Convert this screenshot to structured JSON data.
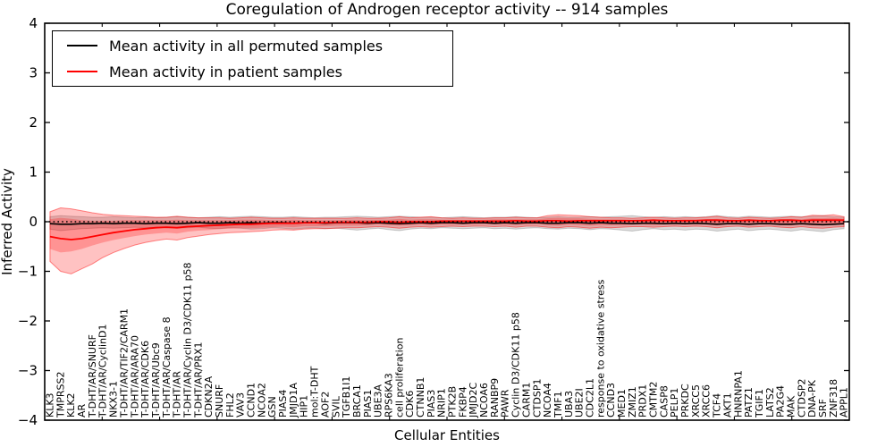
{
  "title": "Coregulation of Androgen receptor activity -- 914 samples",
  "axes": {
    "xlabel": "Cellular Entities",
    "ylabel": "Inferred Activity"
  },
  "legend": {
    "position": "upper left",
    "entries": [
      {
        "label": "Mean activity in all permuted samples",
        "color": "#000000"
      },
      {
        "label": "Mean activity in patient samples",
        "color": "#ff0000"
      }
    ]
  },
  "colors": {
    "permuted_line": "#000000",
    "patient_line": "#ff0000",
    "permuted_fill": "rgba(0,0,0,0.14)",
    "patient_fill": "rgba(255,0,0,0.24)",
    "zero_line": "#000000",
    "background": "#ffffff"
  },
  "chart_data": {
    "type": "line",
    "title": "Coregulation of Androgen receptor activity -- 914 samples",
    "xlabel": "Cellular Entities",
    "ylabel": "Inferred Activity",
    "ylim": [
      -4,
      4
    ],
    "yticks": [
      4,
      3,
      2,
      1,
      0,
      -1,
      -2,
      -3,
      -4
    ],
    "grid": false,
    "legend_position": "upper left",
    "zero_line": {
      "y": 0,
      "style": "dotted",
      "color": "#000000"
    },
    "categories": [
      "KLK3",
      "TMPRSS2",
      "KLK2",
      "AR",
      "T-DHT/AR/SNURF",
      "T-DHT/AR/CyclinD1",
      "NKX3-1",
      "T-DHT/AR/TIF2/CARM1",
      "T-DHT/AR/ARA70",
      "T-DHT/AR/CDK6",
      "T-DHT/AR/Ubc9",
      "T-DHT/AR/Caspase 8",
      "T-DHT/AR",
      "T-DHT/AR/Cyclin D3/CDK11 p58",
      "T-DHT/AR/PRX1",
      "CDKN2A",
      "SNURF",
      "FHL2",
      "VAV3",
      "CCND1",
      "NCOA2",
      "GSN",
      "PIAS4",
      "JMJD1A",
      "HIP1",
      "mol:T-DHT",
      "AOF2",
      "SVIL",
      "TGFB1I1",
      "BRCA1",
      "PIAS1",
      "UBE3A",
      "RPS6KA3",
      "cell proliferation",
      "CDK6",
      "CTNNB1",
      "PIAS3",
      "NRIP1",
      "PTK2B",
      "FKBP4",
      "JMJD2C",
      "NCOA6",
      "RANBP9",
      "PAWR",
      "Cyclin D3/CDK11 p58",
      "CARM1",
      "CTDSP1",
      "NCOA4",
      "TMF1",
      "UBA3",
      "UBE2I",
      "CDC2L1",
      "response to oxidative stress",
      "CCND3",
      "MED1",
      "ZMIZ1",
      "PRDX1",
      "CMTM2",
      "CASP8",
      "PELP1",
      "PRKDC",
      "XRCC5",
      "XRCC6",
      "TCF4",
      "AKT1",
      "HNRNPA1",
      "PATZ1",
      "TGIF1",
      "LATS2",
      "PA2G4",
      "MAK",
      "CTDSP2",
      "DNA-PK",
      "SRF",
      "ZNF318",
      "APPL1"
    ],
    "series": [
      {
        "name": "Mean activity in all permuted samples",
        "color": "#000000",
        "values": [
          -0.04,
          -0.05,
          -0.05,
          -0.04,
          -0.04,
          -0.03,
          -0.04,
          -0.03,
          -0.03,
          -0.04,
          -0.03,
          -0.03,
          -0.04,
          -0.03,
          -0.02,
          -0.03,
          -0.03,
          -0.02,
          -0.03,
          -0.02,
          -0.03,
          -0.02,
          -0.02,
          -0.03,
          -0.02,
          -0.02,
          -0.03,
          -0.02,
          -0.02,
          -0.02,
          -0.03,
          -0.02,
          -0.03,
          -0.04,
          -0.03,
          -0.02,
          -0.03,
          -0.02,
          -0.02,
          -0.03,
          -0.02,
          -0.02,
          -0.03,
          -0.02,
          -0.03,
          -0.02,
          -0.02,
          -0.03,
          -0.03,
          -0.02,
          -0.02,
          -0.03,
          -0.02,
          -0.03,
          -0.03,
          -0.04,
          -0.03,
          -0.03,
          -0.04,
          -0.03,
          -0.04,
          -0.03,
          -0.04,
          -0.05,
          -0.04,
          -0.04,
          -0.05,
          -0.04,
          -0.04,
          -0.05,
          -0.05,
          -0.04,
          -0.05,
          -0.06,
          -0.05,
          -0.04
        ]
      },
      {
        "name": "Mean activity in patient samples",
        "color": "#ff0000",
        "values": [
          -0.3,
          -0.34,
          -0.36,
          -0.34,
          -0.3,
          -0.26,
          -0.22,
          -0.19,
          -0.16,
          -0.14,
          -0.12,
          -0.11,
          -0.12,
          -0.1,
          -0.09,
          -0.08,
          -0.07,
          -0.06,
          -0.05,
          -0.05,
          -0.04,
          -0.03,
          -0.03,
          -0.03,
          -0.02,
          -0.02,
          -0.02,
          -0.01,
          -0.01,
          -0.01,
          -0.01,
          0.0,
          0.0,
          -0.01,
          0.0,
          0.0,
          0.0,
          0.01,
          0.01,
          0.01,
          0.01,
          0.01,
          0.01,
          0.01,
          0.02,
          0.01,
          0.01,
          0.02,
          0.02,
          0.01,
          0.02,
          0.02,
          0.02,
          0.02,
          0.02,
          0.02,
          0.02,
          0.03,
          0.02,
          0.02,
          0.02,
          0.02,
          0.03,
          0.03,
          0.02,
          0.02,
          0.03,
          0.02,
          0.02,
          0.03,
          0.03,
          0.02,
          0.03,
          0.03,
          0.03,
          0.03
        ]
      }
    ],
    "bands": [
      {
        "name": "permuted samples range",
        "fill": "rgba(0,0,0,0.14)",
        "edge": "rgba(0,0,0,0.18)",
        "low": [
          -0.15,
          -0.18,
          -0.16,
          -0.14,
          -0.13,
          -0.12,
          -0.13,
          -0.12,
          -0.11,
          -0.12,
          -0.11,
          -0.12,
          -0.13,
          -0.12,
          -0.11,
          -0.13,
          -0.14,
          -0.12,
          -0.13,
          -0.15,
          -0.14,
          -0.12,
          -0.13,
          -0.15,
          -0.13,
          -0.12,
          -0.14,
          -0.13,
          -0.15,
          -0.17,
          -0.15,
          -0.13,
          -0.16,
          -0.18,
          -0.15,
          -0.13,
          -0.14,
          -0.12,
          -0.13,
          -0.14,
          -0.13,
          -0.12,
          -0.14,
          -0.13,
          -0.15,
          -0.13,
          -0.12,
          -0.14,
          -0.15,
          -0.13,
          -0.14,
          -0.16,
          -0.14,
          -0.15,
          -0.17,
          -0.19,
          -0.16,
          -0.14,
          -0.16,
          -0.15,
          -0.17,
          -0.15,
          -0.16,
          -0.19,
          -0.17,
          -0.15,
          -0.18,
          -0.16,
          -0.15,
          -0.17,
          -0.19,
          -0.16,
          -0.18,
          -0.2,
          -0.16,
          -0.14
        ],
        "high": [
          0.1,
          0.12,
          0.11,
          0.1,
          0.09,
          0.09,
          0.1,
          0.09,
          0.08,
          0.09,
          0.08,
          0.09,
          0.1,
          0.09,
          0.08,
          0.09,
          0.1,
          0.09,
          0.1,
          0.11,
          0.1,
          0.09,
          0.09,
          0.1,
          0.09,
          0.08,
          0.09,
          0.09,
          0.1,
          0.11,
          0.1,
          0.09,
          0.1,
          0.11,
          0.1,
          0.09,
          0.09,
          0.08,
          0.09,
          0.1,
          0.09,
          0.08,
          0.09,
          0.09,
          0.1,
          0.09,
          0.08,
          0.09,
          0.1,
          0.09,
          0.09,
          0.1,
          0.09,
          0.1,
          0.11,
          0.12,
          0.1,
          0.09,
          0.1,
          0.09,
          0.1,
          0.09,
          0.1,
          0.12,
          0.1,
          0.09,
          0.11,
          0.1,
          0.09,
          0.1,
          0.11,
          0.1,
          0.11,
          0.12,
          0.1,
          0.09
        ]
      },
      {
        "name": "patient samples range (outer)",
        "fill": "rgba(255,0,0,0.24)",
        "edge": "rgba(255,0,0,0.45)",
        "low": [
          -0.8,
          -1.0,
          -1.05,
          -0.95,
          -0.85,
          -0.72,
          -0.62,
          -0.54,
          -0.47,
          -0.42,
          -0.38,
          -0.35,
          -0.37,
          -0.32,
          -0.29,
          -0.26,
          -0.24,
          -0.22,
          -0.21,
          -0.2,
          -0.19,
          -0.17,
          -0.16,
          -0.17,
          -0.15,
          -0.14,
          -0.14,
          -0.13,
          -0.12,
          -0.12,
          -0.11,
          -0.1,
          -0.11,
          -0.13,
          -0.11,
          -0.1,
          -0.11,
          -0.1,
          -0.09,
          -0.1,
          -0.09,
          -0.09,
          -0.1,
          -0.09,
          -0.11,
          -0.09,
          -0.09,
          -0.11,
          -0.12,
          -0.1,
          -0.11,
          -0.13,
          -0.11,
          -0.12,
          -0.11,
          -0.1,
          -0.1,
          -0.11,
          -0.1,
          -0.09,
          -0.1,
          -0.09,
          -0.1,
          -0.12,
          -0.1,
          -0.09,
          -0.11,
          -0.1,
          -0.09,
          -0.11,
          -0.12,
          -0.1,
          -0.12,
          -0.13,
          -0.11,
          -0.1
        ],
        "high": [
          0.2,
          0.28,
          0.26,
          0.22,
          0.18,
          0.15,
          0.13,
          0.12,
          0.11,
          0.1,
          0.09,
          0.09,
          0.11,
          0.09,
          0.08,
          0.08,
          0.08,
          0.07,
          0.08,
          0.09,
          0.08,
          0.07,
          0.07,
          0.08,
          0.07,
          0.07,
          0.07,
          0.07,
          0.07,
          0.08,
          0.07,
          0.07,
          0.08,
          0.1,
          0.08,
          0.09,
          0.1,
          0.08,
          0.07,
          0.08,
          0.07,
          0.07,
          0.08,
          0.08,
          0.09,
          0.08,
          0.08,
          0.12,
          0.14,
          0.13,
          0.12,
          0.1,
          0.09,
          0.08,
          0.08,
          0.07,
          0.08,
          0.09,
          0.08,
          0.07,
          0.08,
          0.08,
          0.09,
          0.11,
          0.08,
          0.07,
          0.09,
          0.08,
          0.07,
          0.08,
          0.1,
          0.09,
          0.13,
          0.12,
          0.14,
          0.1
        ]
      },
      {
        "name": "patient samples range (inner)",
        "fill": "rgba(255,0,0,0.24)",
        "edge": "none",
        "low": [
          -0.55,
          -0.62,
          -0.6,
          -0.55,
          -0.48,
          -0.42,
          -0.37,
          -0.33,
          -0.29,
          -0.26,
          -0.24,
          -0.22,
          -0.24,
          -0.2,
          -0.18,
          -0.17,
          -0.15,
          -0.14,
          -0.13,
          -0.13,
          -0.12,
          -0.11,
          -0.1,
          -0.11,
          -0.09,
          -0.09,
          -0.09,
          -0.08,
          -0.08,
          -0.08,
          -0.07,
          -0.06,
          -0.07,
          -0.08,
          -0.07,
          -0.06,
          -0.07,
          -0.06,
          -0.06,
          -0.06,
          -0.06,
          -0.05,
          -0.06,
          -0.06,
          -0.07,
          -0.06,
          -0.05,
          -0.07,
          -0.08,
          -0.06,
          -0.07,
          -0.08,
          -0.07,
          -0.07,
          -0.07,
          -0.06,
          -0.06,
          -0.07,
          -0.06,
          -0.06,
          -0.06,
          -0.06,
          -0.06,
          -0.08,
          -0.06,
          -0.06,
          -0.07,
          -0.06,
          -0.06,
          -0.07,
          -0.08,
          -0.06,
          -0.08,
          -0.08,
          -0.07,
          -0.06
        ],
        "high": [
          0.05,
          0.08,
          0.06,
          0.03,
          0.02,
          0.02,
          0.02,
          0.03,
          0.03,
          0.03,
          0.03,
          0.03,
          0.04,
          0.03,
          0.03,
          0.03,
          0.03,
          0.03,
          0.04,
          0.04,
          0.04,
          0.03,
          0.03,
          0.04,
          0.03,
          0.03,
          0.03,
          0.03,
          0.04,
          0.04,
          0.04,
          0.04,
          0.04,
          0.06,
          0.04,
          0.05,
          0.05,
          0.04,
          0.04,
          0.04,
          0.04,
          0.04,
          0.05,
          0.05,
          0.05,
          0.05,
          0.05,
          0.07,
          0.08,
          0.07,
          0.07,
          0.06,
          0.05,
          0.05,
          0.05,
          0.04,
          0.05,
          0.05,
          0.05,
          0.04,
          0.05,
          0.05,
          0.05,
          0.06,
          0.05,
          0.04,
          0.05,
          0.05,
          0.04,
          0.05,
          0.06,
          0.05,
          0.07,
          0.07,
          0.08,
          0.06
        ]
      }
    ]
  }
}
